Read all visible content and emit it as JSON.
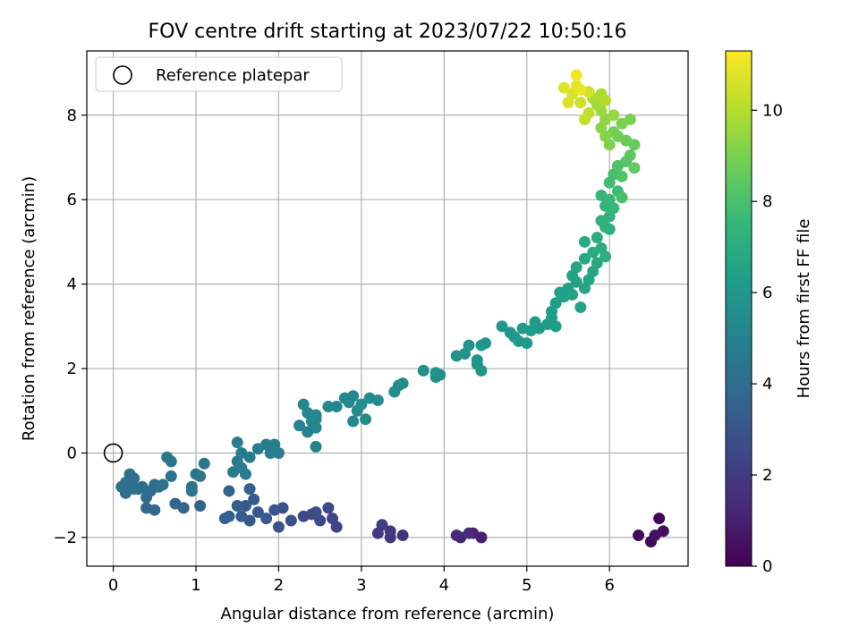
{
  "chart_data": {
    "type": "scatter",
    "title": "FOV centre drift starting at 2023/07/22 10:50:16",
    "xlabel": "Angular distance from reference (arcmin)",
    "ylabel": "Rotation from reference (arcmin)",
    "xlim": [
      -0.32,
      6.95
    ],
    "ylim": [
      -2.68,
      9.52
    ],
    "xticks": [
      0,
      1,
      2,
      3,
      4,
      5,
      6
    ],
    "yticks": [
      -2,
      0,
      2,
      4,
      6,
      8
    ],
    "grid": true,
    "legend": {
      "placement": "top-left",
      "entries": [
        "Reference platepar"
      ]
    },
    "reference_point": {
      "x": 0,
      "y": 0,
      "label": "Reference platepar"
    },
    "colorbar": {
      "label": "Hours from first FF file",
      "colormap": "viridis",
      "range": [
        0,
        11.3
      ],
      "ticks": [
        0,
        2,
        4,
        6,
        8,
        10
      ]
    },
    "colormap_stops": [
      "#440154",
      "#482878",
      "#3e4989",
      "#31688e",
      "#26828e",
      "#1f9e89",
      "#35b779",
      "#6ece58",
      "#b5de2b",
      "#fde725"
    ],
    "points": [
      {
        "x": 6.6,
        "y": -1.55,
        "t": 0.1
      },
      {
        "x": 6.35,
        "y": -1.95,
        "t": 0.2
      },
      {
        "x": 6.5,
        "y": -2.1,
        "t": 0.3
      },
      {
        "x": 6.65,
        "y": -1.85,
        "t": 0.4
      },
      {
        "x": 6.55,
        "y": -1.95,
        "t": 0.5
      },
      {
        "x": 4.45,
        "y": -2.0,
        "t": 1.0
      },
      {
        "x": 4.35,
        "y": -1.9,
        "t": 1.1
      },
      {
        "x": 4.2,
        "y": -2.0,
        "t": 1.2
      },
      {
        "x": 4.15,
        "y": -1.95,
        "t": 1.3
      },
      {
        "x": 4.3,
        "y": -1.9,
        "t": 1.4
      },
      {
        "x": 3.5,
        "y": -1.95,
        "t": 1.7
      },
      {
        "x": 3.35,
        "y": -1.85,
        "t": 1.8
      },
      {
        "x": 3.35,
        "y": -2.0,
        "t": 1.9
      },
      {
        "x": 3.2,
        "y": -1.9,
        "t": 2.0
      },
      {
        "x": 3.25,
        "y": -1.7,
        "t": 2.1
      },
      {
        "x": 2.7,
        "y": -1.75,
        "t": 2.3
      },
      {
        "x": 2.65,
        "y": -1.55,
        "t": 2.4
      },
      {
        "x": 2.6,
        "y": -1.3,
        "t": 2.5
      },
      {
        "x": 2.5,
        "y": -1.6,
        "t": 2.5
      },
      {
        "x": 2.4,
        "y": -1.45,
        "t": 2.6
      },
      {
        "x": 2.3,
        "y": -1.5,
        "t": 2.6
      },
      {
        "x": 2.45,
        "y": -1.4,
        "t": 2.7
      },
      {
        "x": 2.15,
        "y": -1.6,
        "t": 2.8
      },
      {
        "x": 2.05,
        "y": -1.3,
        "t": 2.9
      },
      {
        "x": 1.95,
        "y": -1.35,
        "t": 3.0
      },
      {
        "x": 2.0,
        "y": -1.75,
        "t": 3.0
      },
      {
        "x": 1.85,
        "y": -1.55,
        "t": 3.1
      },
      {
        "x": 1.75,
        "y": -1.4,
        "t": 3.1
      },
      {
        "x": 1.65,
        "y": -1.6,
        "t": 3.2
      },
      {
        "x": 1.6,
        "y": -1.25,
        "t": 3.2
      },
      {
        "x": 1.7,
        "y": -1.1,
        "t": 3.3
      },
      {
        "x": 1.55,
        "y": -1.5,
        "t": 3.3
      },
      {
        "x": 1.5,
        "y": -1.25,
        "t": 3.4
      },
      {
        "x": 1.4,
        "y": -1.5,
        "t": 3.4
      },
      {
        "x": 1.35,
        "y": -1.55,
        "t": 3.5
      },
      {
        "x": 1.65,
        "y": -0.85,
        "t": 3.5
      },
      {
        "x": 1.4,
        "y": -0.9,
        "t": 3.6
      },
      {
        "x": 1.05,
        "y": -1.25,
        "t": 3.6
      },
      {
        "x": 0.85,
        "y": -1.3,
        "t": 3.7
      },
      {
        "x": 0.75,
        "y": -1.2,
        "t": 3.7
      },
      {
        "x": 0.5,
        "y": -1.35,
        "t": 3.8
      },
      {
        "x": 0.4,
        "y": -1.3,
        "t": 3.8
      },
      {
        "x": 0.4,
        "y": -1.05,
        "t": 3.9
      },
      {
        "x": 0.45,
        "y": -0.9,
        "t": 3.9
      },
      {
        "x": 0.5,
        "y": -0.75,
        "t": 4.0
      },
      {
        "x": 0.35,
        "y": -0.8,
        "t": 4.0
      },
      {
        "x": 0.3,
        "y": -0.85,
        "t": 4.0
      },
      {
        "x": 0.25,
        "y": -0.6,
        "t": 4.1
      },
      {
        "x": 0.2,
        "y": -0.5,
        "t": 4.1
      },
      {
        "x": 0.15,
        "y": -0.7,
        "t": 4.1
      },
      {
        "x": 0.1,
        "y": -0.8,
        "t": 4.2
      },
      {
        "x": 0.15,
        "y": -0.95,
        "t": 4.2
      },
      {
        "x": 0.25,
        "y": -0.85,
        "t": 4.2
      },
      {
        "x": 0.6,
        "y": -0.75,
        "t": 4.3
      },
      {
        "x": 0.55,
        "y": -0.8,
        "t": 4.3
      },
      {
        "x": 0.7,
        "y": -0.55,
        "t": 4.3
      },
      {
        "x": 0.95,
        "y": -0.9,
        "t": 4.4
      },
      {
        "x": 0.95,
        "y": -0.8,
        "t": 4.4
      },
      {
        "x": 1.0,
        "y": -0.5,
        "t": 4.4
      },
      {
        "x": 1.05,
        "y": -0.55,
        "t": 4.4
      },
      {
        "x": 1.1,
        "y": -0.25,
        "t": 4.5
      },
      {
        "x": 0.65,
        "y": -0.1,
        "t": 4.5
      },
      {
        "x": 0.7,
        "y": -0.2,
        "t": 4.5
      },
      {
        "x": 1.45,
        "y": -0.45,
        "t": 4.6
      },
      {
        "x": 1.5,
        "y": -0.2,
        "t": 4.6
      },
      {
        "x": 1.55,
        "y": -0.35,
        "t": 4.6
      },
      {
        "x": 1.6,
        "y": -0.5,
        "t": 4.6
      },
      {
        "x": 1.55,
        "y": 0.0,
        "t": 4.7
      },
      {
        "x": 1.5,
        "y": 0.25,
        "t": 4.7
      },
      {
        "x": 1.65,
        "y": -0.1,
        "t": 4.7
      },
      {
        "x": 1.75,
        "y": 0.1,
        "t": 4.8
      },
      {
        "x": 1.85,
        "y": 0.2,
        "t": 4.8
      },
      {
        "x": 1.9,
        "y": 0.0,
        "t": 4.8
      },
      {
        "x": 2.0,
        "y": 0.0,
        "t": 4.8
      },
      {
        "x": 1.95,
        "y": 0.2,
        "t": 4.9
      },
      {
        "x": 2.45,
        "y": 0.15,
        "t": 5.0
      },
      {
        "x": 2.35,
        "y": 0.5,
        "t": 5.0
      },
      {
        "x": 2.25,
        "y": 0.65,
        "t": 5.0
      },
      {
        "x": 2.45,
        "y": 0.6,
        "t": 5.1
      },
      {
        "x": 2.4,
        "y": 0.75,
        "t": 5.1
      },
      {
        "x": 2.45,
        "y": 0.9,
        "t": 5.1
      },
      {
        "x": 2.35,
        "y": 0.95,
        "t": 5.2
      },
      {
        "x": 2.3,
        "y": 1.15,
        "t": 5.2
      },
      {
        "x": 2.45,
        "y": 0.8,
        "t": 5.2
      },
      {
        "x": 2.6,
        "y": 1.1,
        "t": 5.3
      },
      {
        "x": 2.7,
        "y": 1.1,
        "t": 5.3
      },
      {
        "x": 2.85,
        "y": 1.2,
        "t": 5.3
      },
      {
        "x": 2.9,
        "y": 1.35,
        "t": 5.3
      },
      {
        "x": 2.8,
        "y": 1.3,
        "t": 5.4
      },
      {
        "x": 2.9,
        "y": 0.75,
        "t": 5.4
      },
      {
        "x": 2.95,
        "y": 1.0,
        "t": 5.4
      },
      {
        "x": 3.05,
        "y": 0.8,
        "t": 5.5
      },
      {
        "x": 3.1,
        "y": 1.3,
        "t": 5.5
      },
      {
        "x": 3.2,
        "y": 1.25,
        "t": 5.5
      },
      {
        "x": 3.0,
        "y": 1.15,
        "t": 5.5
      },
      {
        "x": 3.4,
        "y": 1.45,
        "t": 5.6
      },
      {
        "x": 3.5,
        "y": 1.65,
        "t": 5.6
      },
      {
        "x": 3.45,
        "y": 1.6,
        "t": 5.6
      },
      {
        "x": 3.75,
        "y": 1.95,
        "t": 5.7
      },
      {
        "x": 3.9,
        "y": 1.8,
        "t": 5.7
      },
      {
        "x": 3.95,
        "y": 1.85,
        "t": 5.7
      },
      {
        "x": 3.9,
        "y": 1.9,
        "t": 5.7
      },
      {
        "x": 4.15,
        "y": 2.3,
        "t": 5.8
      },
      {
        "x": 4.25,
        "y": 2.35,
        "t": 5.8
      },
      {
        "x": 4.3,
        "y": 2.55,
        "t": 5.8
      },
      {
        "x": 4.4,
        "y": 2.2,
        "t": 5.8
      },
      {
        "x": 4.45,
        "y": 2.55,
        "t": 5.9
      },
      {
        "x": 4.4,
        "y": 2.1,
        "t": 5.9
      },
      {
        "x": 4.45,
        "y": 1.95,
        "t": 5.9
      },
      {
        "x": 4.5,
        "y": 2.6,
        "t": 5.9
      },
      {
        "x": 4.7,
        "y": 3.0,
        "t": 6.0
      },
      {
        "x": 4.8,
        "y": 2.85,
        "t": 6.0
      },
      {
        "x": 4.85,
        "y": 2.75,
        "t": 6.0
      },
      {
        "x": 4.95,
        "y": 2.95,
        "t": 6.1
      },
      {
        "x": 4.9,
        "y": 2.65,
        "t": 6.1
      },
      {
        "x": 5.0,
        "y": 2.6,
        "t": 6.1
      },
      {
        "x": 5.05,
        "y": 2.9,
        "t": 6.1
      },
      {
        "x": 5.1,
        "y": 3.1,
        "t": 6.2
      },
      {
        "x": 5.15,
        "y": 2.95,
        "t": 6.2
      },
      {
        "x": 5.25,
        "y": 3.05,
        "t": 6.2
      },
      {
        "x": 5.3,
        "y": 3.2,
        "t": 6.2
      },
      {
        "x": 5.35,
        "y": 3.0,
        "t": 6.3
      },
      {
        "x": 5.3,
        "y": 3.35,
        "t": 6.3
      },
      {
        "x": 5.35,
        "y": 3.55,
        "t": 6.3
      },
      {
        "x": 5.4,
        "y": 3.8,
        "t": 6.4
      },
      {
        "x": 5.45,
        "y": 3.7,
        "t": 6.4
      },
      {
        "x": 5.5,
        "y": 3.9,
        "t": 6.4
      },
      {
        "x": 5.55,
        "y": 3.75,
        "t": 6.5
      },
      {
        "x": 5.6,
        "y": 4.05,
        "t": 6.5
      },
      {
        "x": 5.55,
        "y": 4.2,
        "t": 6.6
      },
      {
        "x": 5.6,
        "y": 4.4,
        "t": 6.6
      },
      {
        "x": 5.65,
        "y": 3.45,
        "t": 6.6
      },
      {
        "x": 5.7,
        "y": 3.9,
        "t": 6.7
      },
      {
        "x": 5.75,
        "y": 4.1,
        "t": 6.7
      },
      {
        "x": 5.8,
        "y": 4.3,
        "t": 6.7
      },
      {
        "x": 5.7,
        "y": 4.6,
        "t": 6.8
      },
      {
        "x": 5.85,
        "y": 4.5,
        "t": 6.8
      },
      {
        "x": 5.8,
        "y": 4.75,
        "t": 6.9
      },
      {
        "x": 5.7,
        "y": 5.0,
        "t": 6.9
      },
      {
        "x": 5.9,
        "y": 4.85,
        "t": 7.0
      },
      {
        "x": 5.85,
        "y": 5.1,
        "t": 7.0
      },
      {
        "x": 5.95,
        "y": 4.65,
        "t": 7.1
      },
      {
        "x": 6.0,
        "y": 5.3,
        "t": 7.1
      },
      {
        "x": 5.9,
        "y": 5.5,
        "t": 7.2
      },
      {
        "x": 5.95,
        "y": 5.35,
        "t": 7.2
      },
      {
        "x": 6.0,
        "y": 5.6,
        "t": 7.3
      },
      {
        "x": 5.95,
        "y": 5.85,
        "t": 7.4
      },
      {
        "x": 5.9,
        "y": 6.1,
        "t": 7.5
      },
      {
        "x": 6.0,
        "y": 6.0,
        "t": 7.6
      },
      {
        "x": 6.05,
        "y": 5.8,
        "t": 7.6
      },
      {
        "x": 6.1,
        "y": 6.2,
        "t": 7.7
      },
      {
        "x": 6.0,
        "y": 6.4,
        "t": 7.8
      },
      {
        "x": 6.05,
        "y": 6.6,
        "t": 7.9
      },
      {
        "x": 6.15,
        "y": 6.05,
        "t": 8.0
      },
      {
        "x": 6.1,
        "y": 6.8,
        "t": 8.1
      },
      {
        "x": 6.15,
        "y": 6.55,
        "t": 8.2
      },
      {
        "x": 6.2,
        "y": 6.9,
        "t": 8.3
      },
      {
        "x": 6.25,
        "y": 7.05,
        "t": 8.4
      },
      {
        "x": 6.3,
        "y": 6.75,
        "t": 8.5
      },
      {
        "x": 6.3,
        "y": 7.3,
        "t": 8.6
      },
      {
        "x": 6.2,
        "y": 7.4,
        "t": 8.7
      },
      {
        "x": 6.1,
        "y": 7.5,
        "t": 8.8
      },
      {
        "x": 6.05,
        "y": 7.6,
        "t": 8.9
      },
      {
        "x": 6.15,
        "y": 7.8,
        "t": 9.0
      },
      {
        "x": 6.25,
        "y": 7.9,
        "t": 9.0
      },
      {
        "x": 6.0,
        "y": 7.3,
        "t": 9.1
      },
      {
        "x": 5.95,
        "y": 7.5,
        "t": 9.2
      },
      {
        "x": 5.9,
        "y": 7.7,
        "t": 9.3
      },
      {
        "x": 5.95,
        "y": 7.9,
        "t": 9.4
      },
      {
        "x": 6.05,
        "y": 8.0,
        "t": 9.5
      },
      {
        "x": 5.9,
        "y": 8.1,
        "t": 9.6
      },
      {
        "x": 5.85,
        "y": 8.25,
        "t": 9.7
      },
      {
        "x": 5.8,
        "y": 8.4,
        "t": 9.8
      },
      {
        "x": 5.9,
        "y": 8.5,
        "t": 9.9
      },
      {
        "x": 5.95,
        "y": 8.35,
        "t": 10.0
      },
      {
        "x": 5.75,
        "y": 8.05,
        "t": 10.2
      },
      {
        "x": 5.7,
        "y": 7.9,
        "t": 10.3
      },
      {
        "x": 5.65,
        "y": 8.3,
        "t": 10.4
      },
      {
        "x": 5.75,
        "y": 8.55,
        "t": 10.5
      },
      {
        "x": 5.55,
        "y": 8.5,
        "t": 10.6
      },
      {
        "x": 5.5,
        "y": 8.3,
        "t": 10.7
      },
      {
        "x": 5.45,
        "y": 8.65,
        "t": 10.8
      },
      {
        "x": 5.6,
        "y": 8.7,
        "t": 10.9
      },
      {
        "x": 5.65,
        "y": 8.6,
        "t": 11.0
      },
      {
        "x": 5.6,
        "y": 8.95,
        "t": 11.1
      }
    ]
  }
}
